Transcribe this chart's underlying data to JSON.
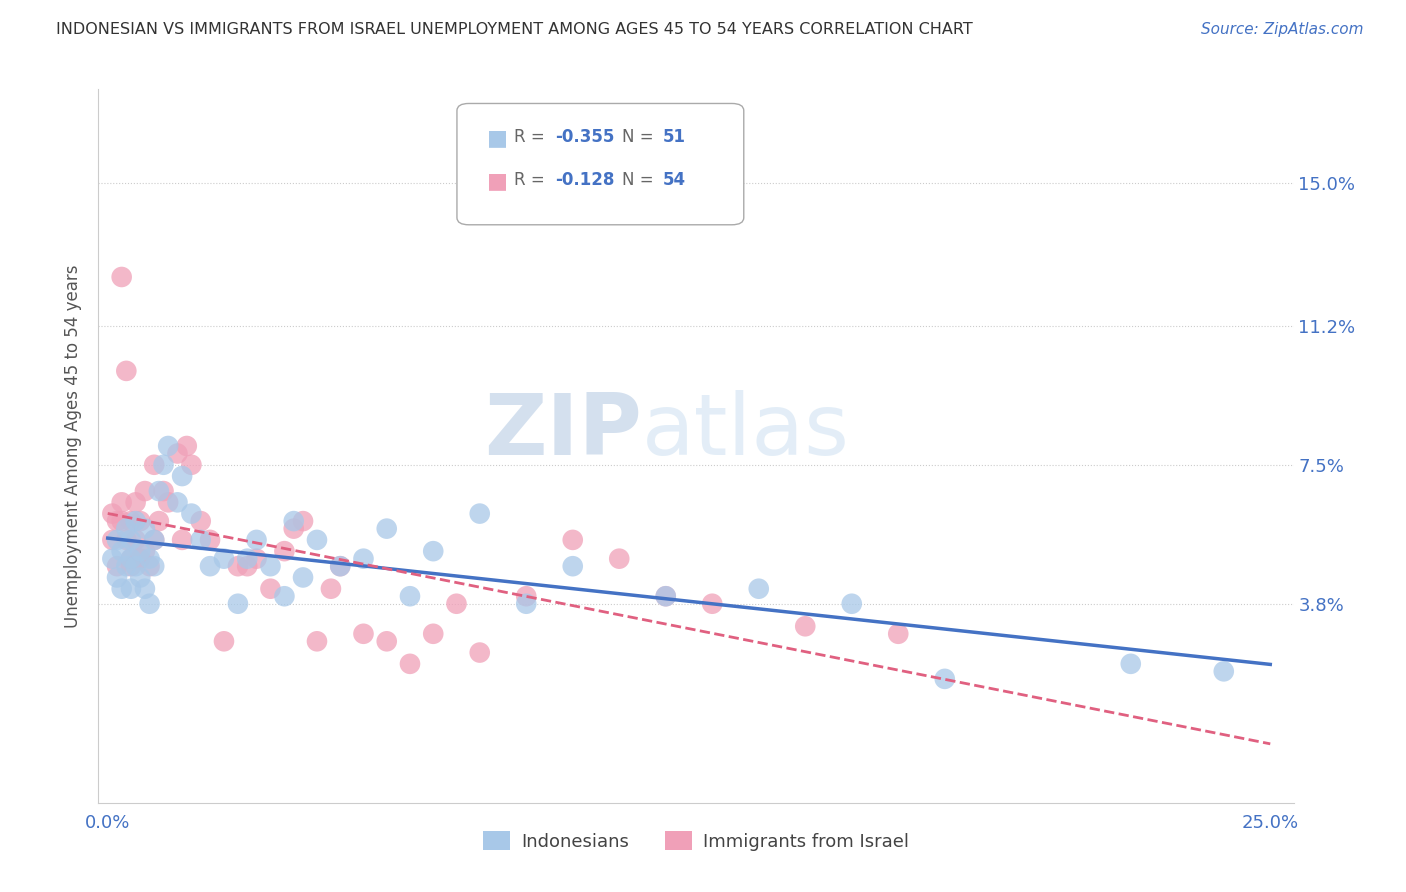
{
  "title": "INDONESIAN VS IMMIGRANTS FROM ISRAEL UNEMPLOYMENT AMONG AGES 45 TO 54 YEARS CORRELATION CHART",
  "source": "Source: ZipAtlas.com",
  "ylabel": "Unemployment Among Ages 45 to 54 years",
  "ytick_labels": [
    "15.0%",
    "11.2%",
    "7.5%",
    "3.8%"
  ],
  "ytick_values": [
    0.15,
    0.112,
    0.075,
    0.038
  ],
  "xlim": [
    -0.002,
    0.255
  ],
  "ylim": [
    -0.015,
    0.175
  ],
  "legend_indonesians": "Indonesians",
  "legend_israel": "Immigrants from Israel",
  "r_indonesian": "-0.355",
  "n_indonesian": "51",
  "r_israel": "-0.128",
  "n_israel": "54",
  "color_indonesian": "#a8c8e8",
  "color_israel": "#f0a0b8",
  "line_color_indonesian": "#4472c4",
  "line_color_israel": "#e06080",
  "indonesian_x": [
    0.001,
    0.002,
    0.002,
    0.003,
    0.003,
    0.004,
    0.004,
    0.005,
    0.005,
    0.005,
    0.006,
    0.006,
    0.007,
    0.007,
    0.008,
    0.008,
    0.009,
    0.009,
    0.01,
    0.01,
    0.011,
    0.012,
    0.013,
    0.015,
    0.016,
    0.018,
    0.02,
    0.022,
    0.025,
    0.028,
    0.03,
    0.032,
    0.035,
    0.038,
    0.04,
    0.042,
    0.045,
    0.05,
    0.055,
    0.06,
    0.065,
    0.07,
    0.08,
    0.09,
    0.1,
    0.12,
    0.14,
    0.16,
    0.18,
    0.22,
    0.24
  ],
  "indonesian_y": [
    0.05,
    0.045,
    0.055,
    0.042,
    0.052,
    0.048,
    0.058,
    0.05,
    0.055,
    0.042,
    0.048,
    0.06,
    0.052,
    0.045,
    0.058,
    0.042,
    0.05,
    0.038,
    0.055,
    0.048,
    0.068,
    0.075,
    0.08,
    0.065,
    0.072,
    0.062,
    0.055,
    0.048,
    0.05,
    0.038,
    0.05,
    0.055,
    0.048,
    0.04,
    0.06,
    0.045,
    0.055,
    0.048,
    0.05,
    0.058,
    0.04,
    0.052,
    0.062,
    0.038,
    0.048,
    0.04,
    0.042,
    0.038,
    0.018,
    0.022,
    0.02
  ],
  "israel_x": [
    0.001,
    0.001,
    0.002,
    0.002,
    0.003,
    0.003,
    0.003,
    0.004,
    0.004,
    0.005,
    0.005,
    0.005,
    0.006,
    0.006,
    0.007,
    0.007,
    0.008,
    0.008,
    0.009,
    0.01,
    0.01,
    0.011,
    0.012,
    0.013,
    0.015,
    0.016,
    0.017,
    0.018,
    0.02,
    0.022,
    0.025,
    0.028,
    0.03,
    0.032,
    0.035,
    0.038,
    0.04,
    0.042,
    0.045,
    0.048,
    0.05,
    0.055,
    0.06,
    0.065,
    0.07,
    0.075,
    0.08,
    0.09,
    0.1,
    0.11,
    0.12,
    0.13,
    0.15,
    0.17
  ],
  "israel_y": [
    0.055,
    0.062,
    0.048,
    0.06,
    0.06,
    0.065,
    0.125,
    0.055,
    0.1,
    0.05,
    0.06,
    0.048,
    0.055,
    0.065,
    0.05,
    0.06,
    0.052,
    0.068,
    0.048,
    0.055,
    0.075,
    0.06,
    0.068,
    0.065,
    0.078,
    0.055,
    0.08,
    0.075,
    0.06,
    0.055,
    0.028,
    0.048,
    0.048,
    0.05,
    0.042,
    0.052,
    0.058,
    0.06,
    0.028,
    0.042,
    0.048,
    0.03,
    0.028,
    0.022,
    0.03,
    0.038,
    0.025,
    0.04,
    0.055,
    0.05,
    0.04,
    0.038,
    0.032,
    0.03
  ],
  "watermark_zip": "ZIP",
  "watermark_atlas": "atlas",
  "background_color": "#ffffff",
  "grid_color": "#cccccc"
}
